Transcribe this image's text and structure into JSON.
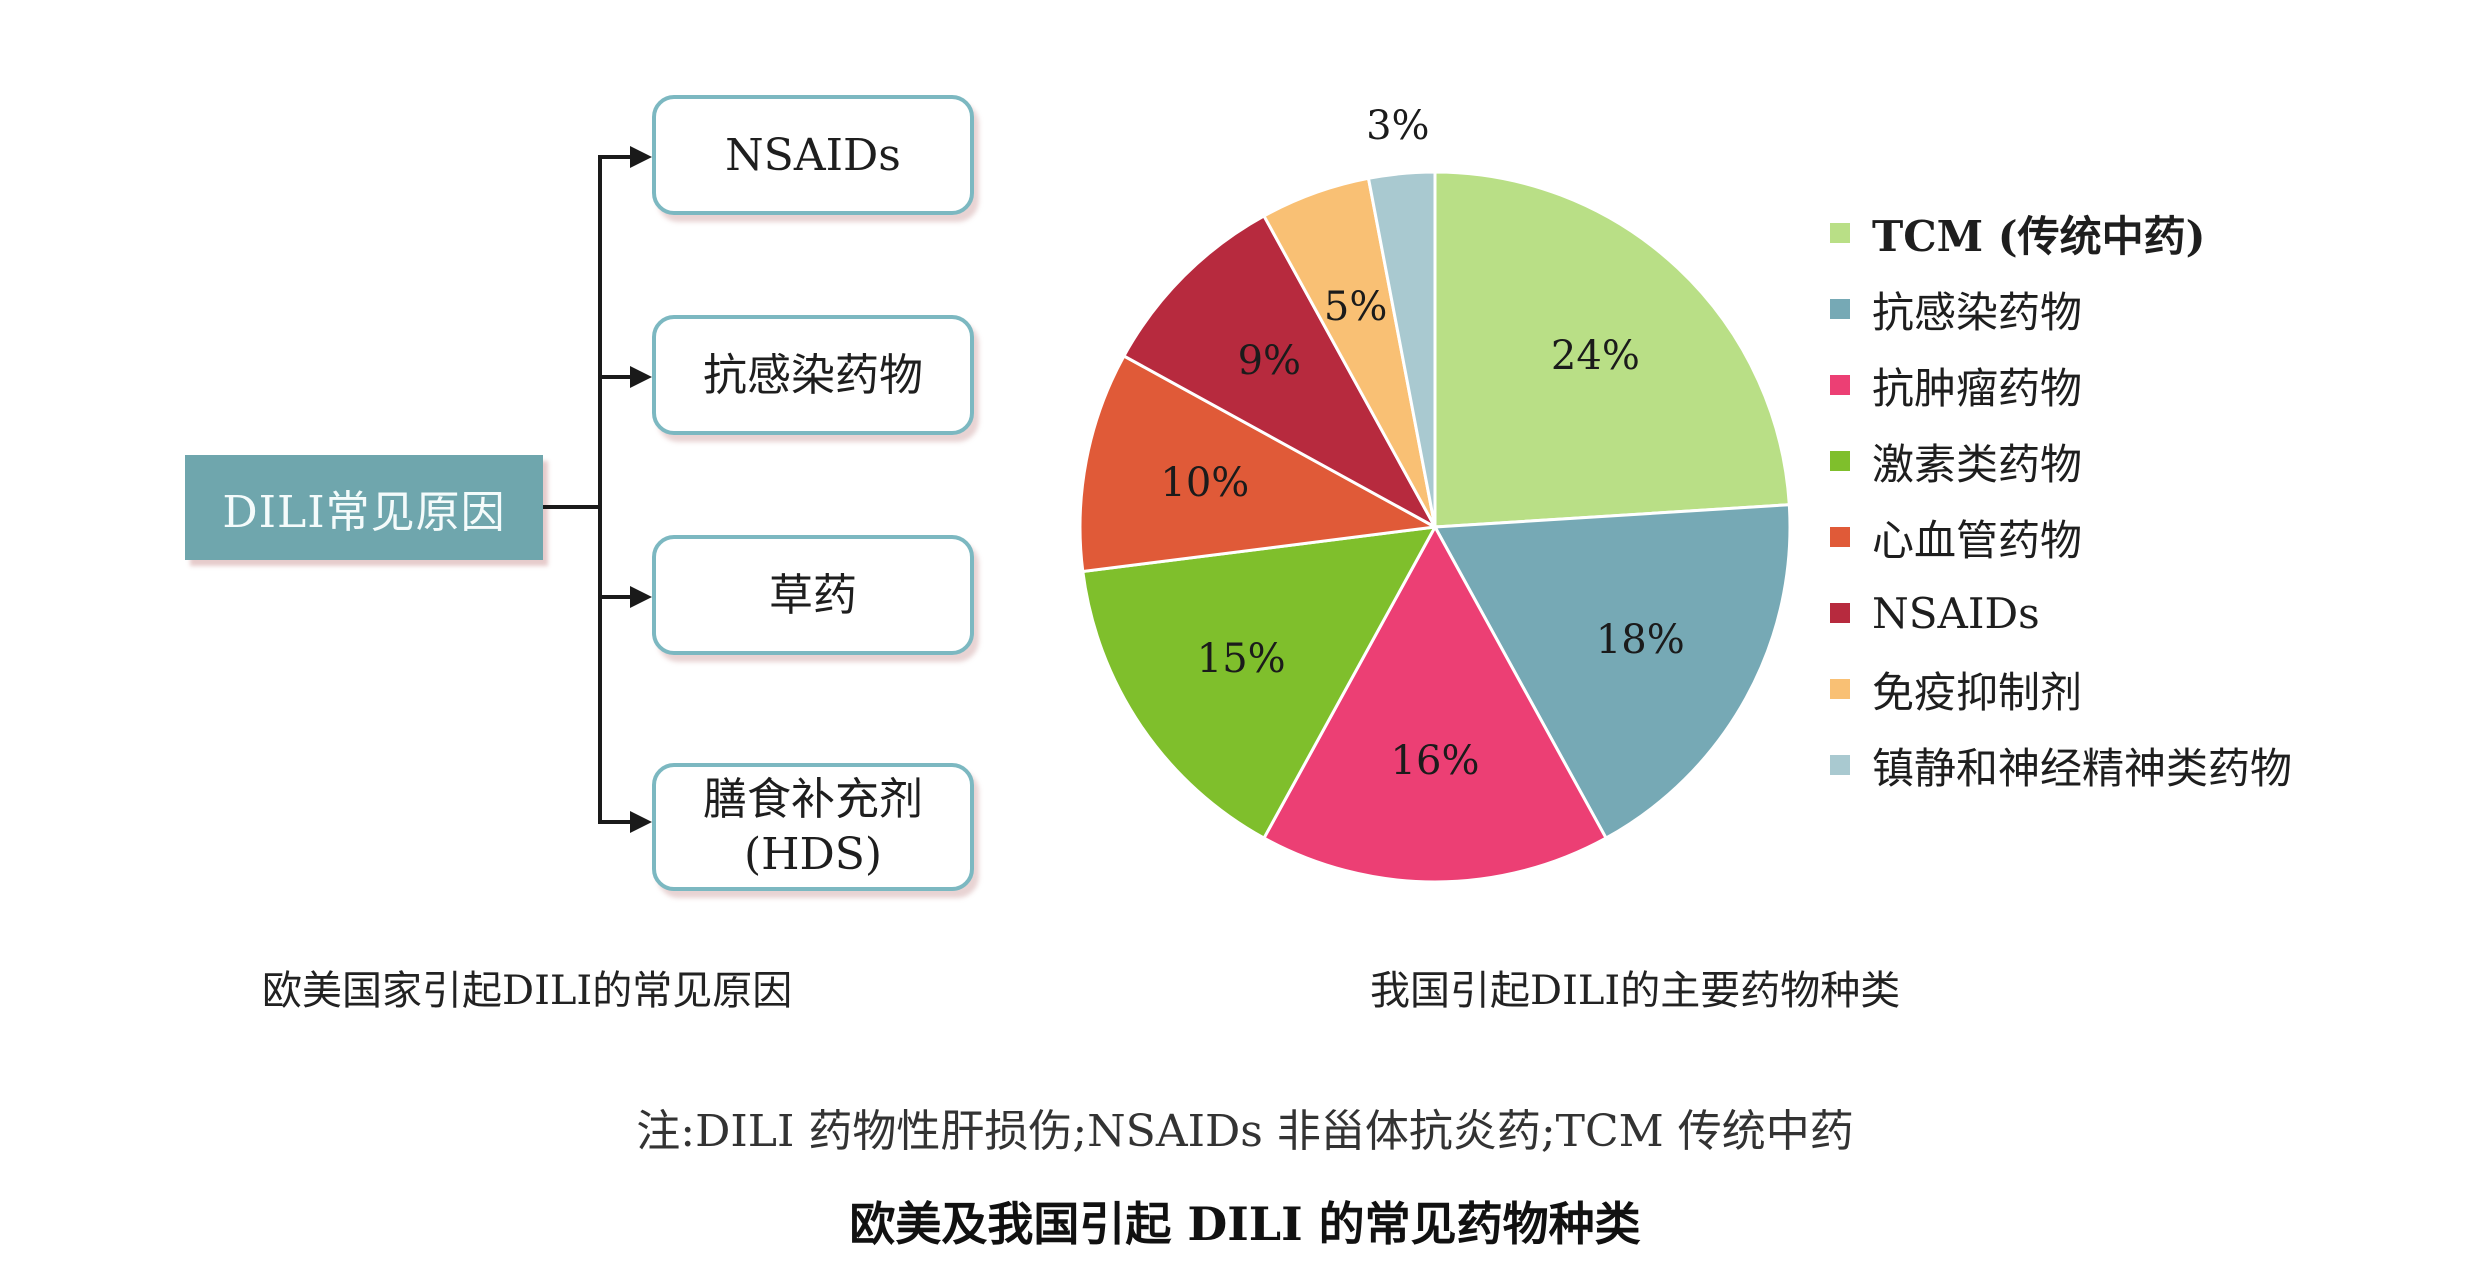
{
  "diagram": {
    "root": "DILI常见原因",
    "children": [
      {
        "line1": "NSAIDs",
        "line2": ""
      },
      {
        "line1": "抗感染药物",
        "line2": ""
      },
      {
        "line1": "草药",
        "line2": ""
      },
      {
        "line1": "膳食补充剂",
        "line2": "(HDS)"
      }
    ],
    "caption": "欧美国家引起DILI的常见原因"
  },
  "pie_caption": "我国引起DILI的主要药物种类",
  "note": "注:DILI 药物性肝损伤;NSAIDs 非甾体抗炎药;TCM 传统中药",
  "title": "欧美及我国引起 DILI 的常见药物种类",
  "legend": [
    {
      "label": "TCM (传统中药)",
      "color": "#b9df86"
    },
    {
      "label": "抗感染药物",
      "color": "#76a9b5"
    },
    {
      "label": "抗肿瘤药物",
      "color": "#ec3f74"
    },
    {
      "label": "激素类药物",
      "color": "#7fbf2c"
    },
    {
      "label": "心血管药物",
      "color": "#e05a38"
    },
    {
      "label": "NSAIDs",
      "color": "#b72a3e"
    },
    {
      "label": "免疫抑制剂",
      "color": "#f9c074"
    },
    {
      "label": "镇静和神经精神类药物",
      "color": "#a9c9d0"
    }
  ],
  "chart_data": {
    "type": "pie",
    "title": "我国引起DILI的主要药物种类",
    "categories": [
      "TCM (传统中药)",
      "抗感染药物",
      "抗肿瘤药物",
      "激素类药物",
      "心血管药物",
      "NSAIDs",
      "免疫抑制剂",
      "镇静和神经精神类药物"
    ],
    "values": [
      24,
      18,
      16,
      15,
      10,
      9,
      5,
      3
    ],
    "labels": [
      "24%",
      "18%",
      "16%",
      "15%",
      "10%",
      "9%",
      "5%",
      "3%"
    ],
    "colors": [
      "#b9df86",
      "#76a9b5",
      "#ec3f74",
      "#7fbf2c",
      "#e05a38",
      "#b72a3e",
      "#f9c074",
      "#a9c9d0"
    ],
    "start_angle": "12 o'clock",
    "direction": "clockwise",
    "legend_position": "right"
  }
}
